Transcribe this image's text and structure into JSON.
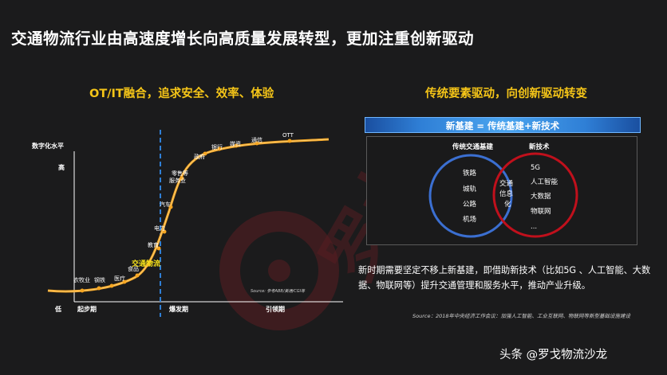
{
  "title": "交通物流行业由高速度增长向高质量发展转型，更加注重创新驱动",
  "left_panel": {
    "subtitle": "OT/IT融合，追求安全、效率、体验",
    "y_axis_label": "数字化水平",
    "y_high": "高",
    "y_low": "低",
    "stages": [
      "起步期",
      "爆发期",
      "引领期"
    ],
    "points": [
      "农牧业",
      "钢铁",
      "医疗",
      "食品",
      "交通物流",
      "教育",
      "电力",
      "汽车",
      "零售等",
      "服务业",
      "政府",
      "银行",
      "媒资",
      "通信",
      "OTT"
    ],
    "source": "Source: 参考ABB/美通/CGI等"
  },
  "right_panel": {
    "subtitle": "传统要素驱动，向创新驱动转变",
    "formula": "新基建 = 传统基建+新技术",
    "left_circle_title": "传统交通基建",
    "right_circle_title": "新技术",
    "left_items": [
      "铁路",
      "城轨",
      "公路",
      "机场"
    ],
    "center_lines": [
      "交通",
      "信息",
      "化"
    ],
    "right_items": [
      "5G",
      "人工智能",
      "大数据",
      "物联网",
      "..."
    ],
    "paragraph": "新时期需要坚定不移上新基建，即借助新技术（比如5G 、人工智能、大数据、物联网等）提升交通管理和服务水平，推动产业升级。",
    "source": "Source：2018年中央经济工作会议：加强人工智能、工业互联网、物联网等新型基础设施建设"
  },
  "watermark": "罗戈",
  "footer": "头条 @罗戈物流沙龙",
  "colors": {
    "accent": "#f5c518",
    "curve": "#f5a623",
    "left_circle": "#3b6fd1",
    "right_circle": "#c0101c",
    "bar": "#2f7fd6"
  }
}
